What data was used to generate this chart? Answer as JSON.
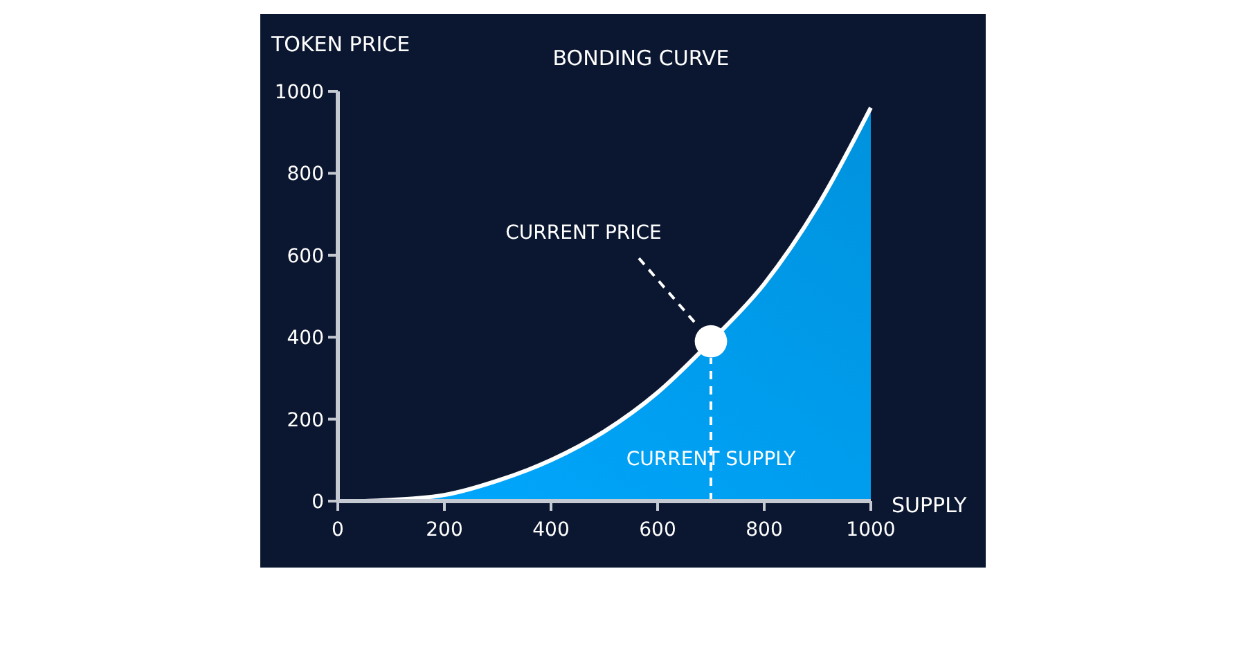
{
  "chart_data": {
    "type": "area",
    "title": "BONDING CURVE",
    "xlabel": "SUPPLY",
    "ylabel": "TOKEN PRICE",
    "xlim": [
      0,
      1000
    ],
    "ylim": [
      0,
      1000
    ],
    "xticks": [
      0,
      200,
      400,
      600,
      800,
      1000
    ],
    "yticks": [
      0,
      200,
      400,
      600,
      800,
      1000
    ],
    "grid": false,
    "series": [
      {
        "color": "#00a8ff",
        "x": [
          0,
          50,
          100,
          150,
          200,
          300,
          400,
          500,
          600,
          700,
          800,
          900,
          1000
        ],
        "values": [
          0,
          0,
          3,
          7,
          15,
          50,
          100,
          170,
          265,
          390,
          530,
          720,
          960
        ]
      },
      {
        "type": "scatter",
        "color": "#ffffff",
        "marker": "circle",
        "x": [
          700
        ],
        "values": [
          390
        ]
      }
    ],
    "ref_lines": [
      {
        "axis": "x",
        "value": 700,
        "label": "CURRENT SUPPLY",
        "color": "#ffffff",
        "line_style": "dashed"
      }
    ],
    "annotations": [
      "CURRENT PRICE"
    ]
  }
}
